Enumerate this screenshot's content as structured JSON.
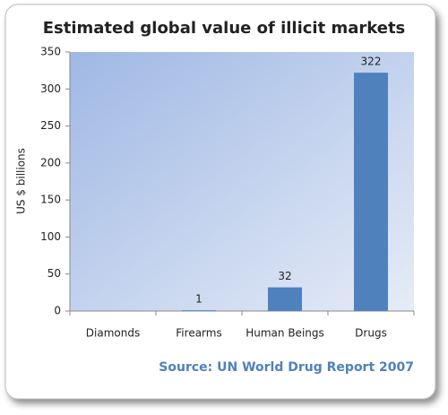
{
  "chart_data": {
    "type": "bar",
    "title": "Estimated global value of illicit markets",
    "y_label": "US $ billions",
    "source": "Source: UN World Drug Report 2007",
    "categories": [
      "Diamonds",
      "Firearms",
      "Human Beings",
      "Drugs"
    ],
    "values": [
      null,
      1,
      32,
      322
    ],
    "color": "#4f81bd",
    "ylim": [
      0,
      350
    ],
    "yticks": [
      0,
      50,
      100,
      150,
      200,
      250,
      300,
      350
    ],
    "grid": false
  }
}
